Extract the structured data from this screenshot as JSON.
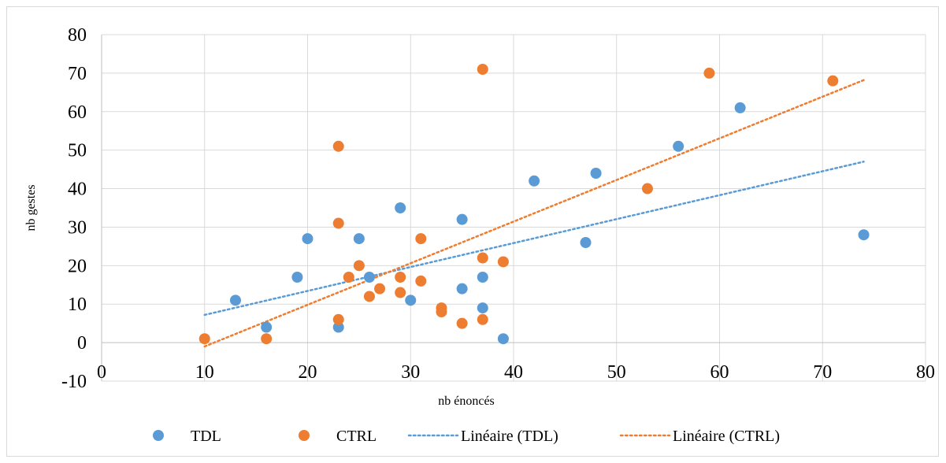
{
  "chart_data": {
    "type": "scatter",
    "title": "",
    "xlabel": "nb énoncés",
    "ylabel": "nb gestes",
    "xlim": [
      0,
      80
    ],
    "ylim": [
      -10,
      80
    ],
    "x_ticks": [
      0,
      10,
      20,
      30,
      40,
      50,
      60,
      70,
      80
    ],
    "y_ticks": [
      -10,
      0,
      10,
      20,
      30,
      40,
      50,
      60,
      70,
      80
    ],
    "grid": true,
    "legend_position": "bottom",
    "series": [
      {
        "name": "TDL",
        "color": "#5b9bd5",
        "points": [
          [
            13,
            11
          ],
          [
            16,
            4
          ],
          [
            19,
            17
          ],
          [
            20,
            27
          ],
          [
            23,
            4
          ],
          [
            25,
            27
          ],
          [
            26,
            17
          ],
          [
            29,
            35
          ],
          [
            30,
            11
          ],
          [
            35,
            32
          ],
          [
            35,
            14
          ],
          [
            37,
            17
          ],
          [
            37,
            9
          ],
          [
            39,
            1
          ],
          [
            42,
            42
          ],
          [
            47,
            26
          ],
          [
            48,
            44
          ],
          [
            56,
            51
          ],
          [
            62,
            61
          ],
          [
            74,
            28
          ]
        ]
      },
      {
        "name": "CTRL",
        "color": "#ed7d31",
        "points": [
          [
            10,
            1
          ],
          [
            16,
            1
          ],
          [
            23,
            51
          ],
          [
            23,
            31
          ],
          [
            23,
            6
          ],
          [
            24,
            17
          ],
          [
            25,
            20
          ],
          [
            26,
            12
          ],
          [
            27,
            14
          ],
          [
            29,
            17
          ],
          [
            29,
            13
          ],
          [
            31,
            27
          ],
          [
            31,
            16
          ],
          [
            33,
            9
          ],
          [
            33,
            8
          ],
          [
            35,
            5
          ],
          [
            37,
            71
          ],
          [
            37,
            22
          ],
          [
            37,
            6
          ],
          [
            39,
            21
          ],
          [
            53,
            40
          ],
          [
            59,
            70
          ],
          [
            71,
            68
          ]
        ]
      }
    ],
    "trendlines": [
      {
        "name": "Linéaire (TDL)",
        "color": "#5b9bd5",
        "x_range": [
          10,
          74
        ],
        "y_start": 7.2,
        "y_end": 47
      },
      {
        "name": "Linéaire (CTRL)",
        "color": "#ed7d31",
        "x_range": [
          10,
          74
        ],
        "y_start": -1,
        "y_end": 68.2
      }
    ]
  }
}
